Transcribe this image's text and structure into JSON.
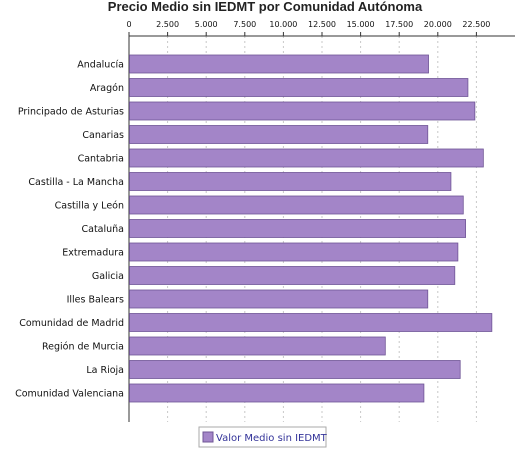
{
  "chart_data": {
    "type": "bar",
    "orientation": "horizontal",
    "title": "Precio Medio sin IEDMT por Comunidad Autónoma",
    "xlabel": "",
    "ylabel": "",
    "xlim": [
      0,
      25000
    ],
    "ticks": [
      0,
      2500,
      5000,
      7500,
      10000,
      12500,
      15000,
      17500,
      20000,
      22500
    ],
    "tick_labels": [
      "0",
      "2.500",
      "5.000",
      "7.500",
      "10.000",
      "12.500",
      "15.000",
      "17.500",
      "20.000",
      "22.500"
    ],
    "axis_position": "top",
    "grid": true,
    "legend_position": "bottom",
    "bar_color": "#a385c8",
    "bar_edge_color": "#6f5596",
    "categories": [
      "Andalucía",
      "Aragón",
      "Principado de Asturias",
      "Canarias",
      "Cantabria",
      "Castilla - La Mancha",
      "Castilla y León",
      "Cataluña",
      "Extremadura",
      "Galicia",
      "Illes Balears",
      "Comunidad de Madrid",
      "Región de Murcia",
      "La Rioja",
      "Comunidad Valenciana"
    ],
    "series": [
      {
        "name": "Valor Medio sin IEDMT",
        "values": [
          19400,
          21950,
          22400,
          19350,
          22950,
          20850,
          21650,
          21800,
          21300,
          21100,
          19350,
          23500,
          16600,
          21450,
          19100
        ]
      }
    ]
  }
}
